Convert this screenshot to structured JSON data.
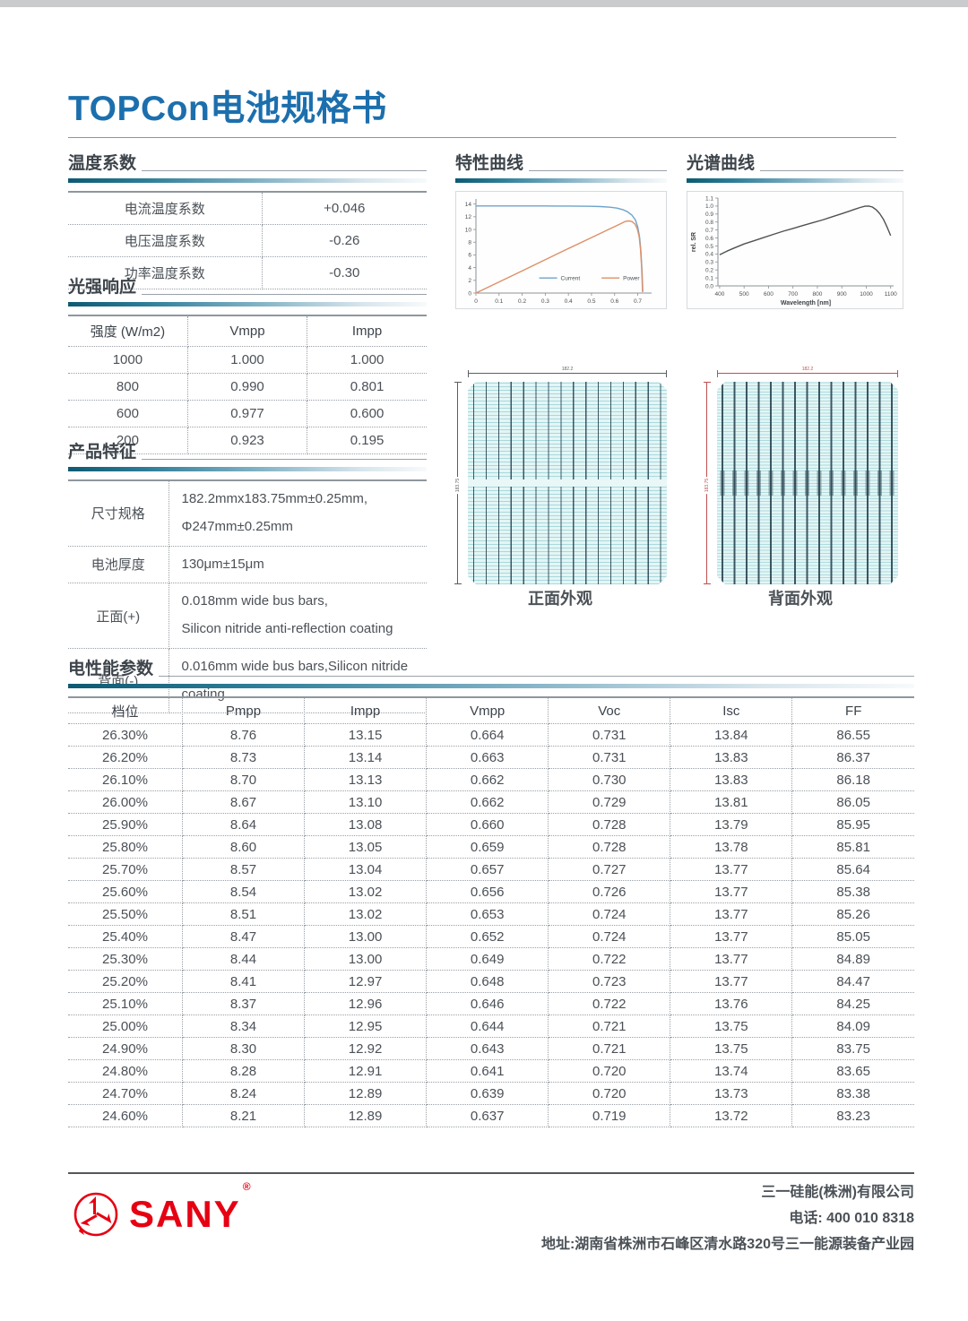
{
  "page": {
    "title": "TOPCon电池规格书"
  },
  "colors": {
    "accent_blue": "#1c6fad",
    "section_bar_dark": "#0d5a72",
    "current_line": "#6ea3cb",
    "power_line": "#dd9068",
    "sr_line": "#4f5254",
    "sany_red": "#e60012",
    "cell_background": "#e4f5f5"
  },
  "temp_coeff": {
    "title": "温度系数",
    "rows": [
      [
        "电流温度系数",
        "+0.046"
      ],
      [
        "电压温度系数",
        "-0.26"
      ],
      [
        "功率温度系数",
        "-0.30"
      ]
    ]
  },
  "irradiance": {
    "title": "光强响应",
    "headers": [
      "强度 (W/m2)",
      "Vmpp",
      "Impp"
    ],
    "rows": [
      [
        "1000",
        "1.000",
        "1.000"
      ],
      [
        "800",
        "0.990",
        "0.801"
      ],
      [
        "600",
        "0.977",
        "0.600"
      ],
      [
        "200",
        "0.923",
        "0.195"
      ]
    ]
  },
  "features": {
    "title": "产品特征",
    "rows": [
      [
        "尺寸规格",
        "182.2mmx183.75mm±0.25mm,\nΦ247mm±0.25mm"
      ],
      [
        "电池厚度",
        "130μm±15μm"
      ],
      [
        "正面(+)",
        "0.018mm wide bus bars,\nSilicon nitride anti-reflection coating"
      ],
      [
        "背面(-)",
        "0.016mm wide bus bars,Silicon nitride coating"
      ]
    ]
  },
  "cell_views": {
    "front": {
      "caption": "正面外观",
      "top_dim": "182.2",
      "left_dim": "183.75"
    },
    "back": {
      "caption": "背面外观",
      "top_dim": "182.2",
      "left_dim": "183.75"
    }
  },
  "electrical": {
    "title": "电性能参数",
    "headers": [
      "档位",
      "Pmpp",
      "Impp",
      "Vmpp",
      "Voc",
      "Isc",
      "FF"
    ],
    "rows": [
      [
        "26.30%",
        "8.76",
        "13.15",
        "0.664",
        "0.731",
        "13.84",
        "86.55"
      ],
      [
        "26.20%",
        "8.73",
        "13.14",
        "0.663",
        "0.731",
        "13.83",
        "86.37"
      ],
      [
        "26.10%",
        "8.70",
        "13.13",
        "0.662",
        "0.730",
        "13.83",
        "86.18"
      ],
      [
        "26.00%",
        "8.67",
        "13.10",
        "0.662",
        "0.729",
        "13.81",
        "86.05"
      ],
      [
        "25.90%",
        "8.64",
        "13.08",
        "0.660",
        "0.728",
        "13.79",
        "85.95"
      ],
      [
        "25.80%",
        "8.60",
        "13.05",
        "0.659",
        "0.728",
        "13.78",
        "85.81"
      ],
      [
        "25.70%",
        "8.57",
        "13.04",
        "0.657",
        "0.727",
        "13.77",
        "85.64"
      ],
      [
        "25.60%",
        "8.54",
        "13.02",
        "0.656",
        "0.726",
        "13.77",
        "85.38"
      ],
      [
        "25.50%",
        "8.51",
        "13.02",
        "0.653",
        "0.724",
        "13.77",
        "85.26"
      ],
      [
        "25.40%",
        "8.47",
        "13.00",
        "0.652",
        "0.724",
        "13.77",
        "85.05"
      ],
      [
        "25.30%",
        "8.44",
        "13.00",
        "0.649",
        "0.722",
        "13.77",
        "84.89"
      ],
      [
        "25.20%",
        "8.41",
        "12.97",
        "0.648",
        "0.723",
        "13.77",
        "84.47"
      ],
      [
        "25.10%",
        "8.37",
        "12.96",
        "0.646",
        "0.722",
        "13.76",
        "84.25"
      ],
      [
        "25.00%",
        "8.34",
        "12.95",
        "0.644",
        "0.721",
        "13.75",
        "84.09"
      ],
      [
        "24.90%",
        "8.30",
        "12.92",
        "0.643",
        "0.721",
        "13.75",
        "83.75"
      ],
      [
        "24.80%",
        "8.28",
        "12.91",
        "0.641",
        "0.720",
        "13.74",
        "83.65"
      ],
      [
        "24.70%",
        "8.24",
        "12.89",
        "0.639",
        "0.720",
        "13.73",
        "83.38"
      ],
      [
        "24.60%",
        "8.21",
        "12.89",
        "0.637",
        "0.719",
        "13.72",
        "83.23"
      ]
    ]
  },
  "footer": {
    "brand": "SANY",
    "reg": "®",
    "company": "三一硅能(株洲)有限公司",
    "phone": "电话: 400 010 8318",
    "address": "地址:湖南省株洲市石峰区清水路320号三一能源装备产业园"
  },
  "chart_data": [
    {
      "id": "chart-iv",
      "type": "line",
      "title": "特性曲线",
      "xlabel": "",
      "ylabel": "",
      "xlim": [
        0,
        0.76
      ],
      "ylim": [
        0,
        14.8
      ],
      "xticks": [
        0,
        0.1,
        0.2,
        0.3,
        0.4,
        0.5,
        0.6,
        0.7
      ],
      "xtick_labels": [
        "0",
        "0.1",
        "0.2",
        "0.3",
        "0.4",
        "0.5",
        "0.6",
        "0.7"
      ],
      "yticks": [
        0,
        2,
        4,
        6,
        8,
        10,
        12,
        14
      ],
      "ytick_labels": [
        "0",
        "2",
        "4",
        "6",
        "8",
        "10",
        "12",
        "14"
      ],
      "grid": false,
      "legend": {
        "position": "inside-lower-center",
        "at": [
          0.36,
          0.84
        ]
      },
      "series": [
        {
          "name": "Current",
          "color": "#6ea3cb",
          "x": [
            0,
            0.05,
            0.1,
            0.15,
            0.2,
            0.25,
            0.3,
            0.35,
            0.4,
            0.45,
            0.5,
            0.54,
            0.58,
            0.61,
            0.635,
            0.655,
            0.675,
            0.69,
            0.7,
            0.708,
            0.714,
            0.719,
            0.722
          ],
          "y": [
            13.7,
            13.7,
            13.7,
            13.7,
            13.7,
            13.7,
            13.7,
            13.69,
            13.68,
            13.66,
            13.64,
            13.6,
            13.5,
            13.36,
            13.12,
            12.8,
            12.25,
            11.5,
            10.4,
            8.8,
            6.5,
            3.2,
            0.2
          ]
        },
        {
          "name": "Power",
          "color": "#dd9068",
          "x": [
            0,
            0.1,
            0.2,
            0.3,
            0.4,
            0.5,
            0.58,
            0.62,
            0.645,
            0.66,
            0.675,
            0.688,
            0.698,
            0.706,
            0.712,
            0.717,
            0.721
          ],
          "y": [
            0,
            1.75,
            3.5,
            5.25,
            7.0,
            8.72,
            10.1,
            10.8,
            11.25,
            11.35,
            11.25,
            10.85,
            10.1,
            8.9,
            6.9,
            3.9,
            0.15
          ]
        }
      ]
    },
    {
      "id": "chart-sr",
      "type": "line",
      "title": "光谱曲线",
      "xlabel": "Wavelength [nm]",
      "ylabel": "rel. SR",
      "xlim": [
        393,
        1112
      ],
      "ylim": [
        0,
        1.1
      ],
      "xticks": [
        400,
        500,
        600,
        700,
        800,
        900,
        1000,
        1100
      ],
      "xtick_labels": [
        "400",
        "500",
        "600",
        "700",
        "800",
        "900",
        "1000",
        "1100"
      ],
      "yticks": [
        0,
        0.1,
        0.2,
        0.3,
        0.4,
        0.5,
        0.6,
        0.7,
        0.8,
        0.9,
        1.0,
        1.1
      ],
      "ytick_labels": [
        "0.0",
        "0.1",
        "0.2",
        "0.3",
        "0.4",
        "0.5",
        "0.6",
        "0.7",
        "0.8",
        "0.9",
        "1.0",
        "1.1"
      ],
      "grid": false,
      "series": [
        {
          "name": "rel. SR",
          "color": "#4f5254",
          "x": [
            400,
            430,
            460,
            500,
            540,
            580,
            620,
            660,
            700,
            740,
            780,
            820,
            860,
            900,
            930,
            955,
            975,
            995,
            1010,
            1025,
            1040,
            1055,
            1070,
            1085,
            1100
          ],
          "y": [
            0.39,
            0.435,
            0.475,
            0.525,
            0.565,
            0.605,
            0.645,
            0.685,
            0.72,
            0.755,
            0.79,
            0.825,
            0.865,
            0.905,
            0.935,
            0.962,
            0.982,
            0.998,
            1.0,
            0.988,
            0.955,
            0.905,
            0.835,
            0.74,
            0.63
          ]
        }
      ]
    }
  ]
}
